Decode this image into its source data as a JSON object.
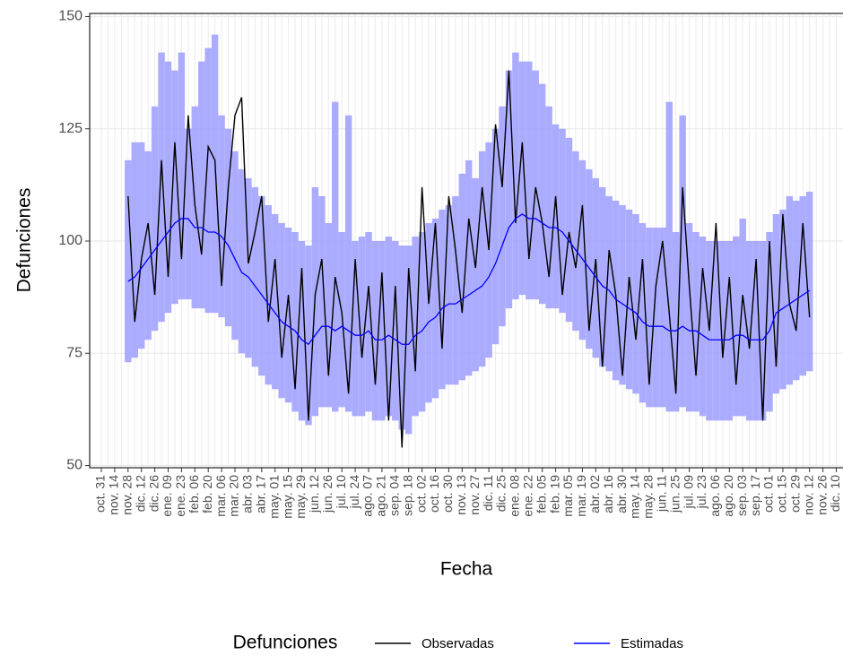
{
  "chart_data": {
    "type": "line",
    "x_label": "Fecha",
    "y_label": "Defunciones",
    "legend_title": "Defunciones",
    "categories": [
      "oct. 31",
      null,
      "nov. 14",
      null,
      "nov. 28",
      null,
      "dic. 12",
      null,
      "dic. 26",
      null,
      "ene. 09",
      null,
      "ene. 23",
      null,
      "feb. 06",
      null,
      "feb. 20",
      null,
      "mar. 06",
      null,
      "mar. 20",
      null,
      "abr. 03",
      null,
      "abr. 17",
      null,
      "may. 01",
      null,
      "may. 15",
      null,
      "may. 29",
      null,
      "jun. 12",
      null,
      "jun. 26",
      null,
      "jul. 10",
      null,
      "jul. 24",
      null,
      "ago. 07",
      null,
      "ago. 21",
      null,
      "sep. 04",
      null,
      "sep. 18",
      null,
      "oct. 02",
      null,
      "oct. 16",
      null,
      "oct. 30",
      null,
      "nov. 13",
      null,
      "nov. 27",
      null,
      "dic. 11",
      null,
      "dic. 25",
      null,
      "ene. 08",
      null,
      "ene. 22",
      null,
      "feb. 05",
      null,
      "feb. 19",
      null,
      "mar. 05",
      null,
      "mar. 19",
      null,
      "abr. 02",
      null,
      "abr. 16",
      null,
      "abr. 30",
      null,
      "may. 14",
      null,
      "may. 28",
      null,
      "jun. 11",
      null,
      "jun. 25",
      null,
      "jul. 09",
      null,
      "jul. 23",
      null,
      "ago. 06",
      null,
      "ago. 20",
      null,
      "sep. 03",
      null,
      "sep. 17",
      null,
      "oct. 01",
      null,
      "oct. 15",
      null,
      "oct. 29",
      null,
      "nov. 12",
      null,
      "nov. 26",
      null,
      "dic. 10"
    ],
    "series": [
      {
        "name": "Observadas",
        "color": "#000000",
        "values": [
          null,
          null,
          null,
          null,
          110,
          82,
          96,
          104,
          88,
          118,
          92,
          122,
          96,
          128,
          108,
          97,
          121,
          118,
          90,
          112,
          128,
          132,
          95,
          102,
          110,
          82,
          96,
          74,
          88,
          67,
          94,
          60,
          88,
          96,
          70,
          92,
          84,
          66,
          96,
          74,
          90,
          68,
          93,
          60,
          90,
          54,
          94,
          71,
          112,
          86,
          104,
          76,
          110,
          98,
          84,
          105,
          94,
          112,
          98,
          126,
          112,
          138,
          104,
          122,
          96,
          112,
          104,
          92,
          110,
          88,
          102,
          94,
          108,
          80,
          96,
          72,
          98,
          88,
          70,
          92,
          78,
          96,
          68,
          90,
          100,
          84,
          66,
          112,
          90,
          70,
          94,
          80,
          104,
          74,
          92,
          68,
          88,
          76,
          96,
          60,
          100,
          72,
          106,
          86,
          80,
          104,
          83,
          null,
          null,
          null,
          null
        ]
      },
      {
        "name": "Estimadas",
        "color": "#0000ff",
        "band_color": "#9e9eff",
        "values": [
          null,
          null,
          null,
          null,
          91,
          92,
          94,
          96,
          98,
          100,
          102,
          104,
          105,
          105,
          103,
          103,
          102,
          102,
          101,
          99,
          96,
          93,
          92,
          90,
          88,
          86,
          84,
          82,
          81,
          80,
          78,
          77,
          79,
          81,
          81,
          80,
          81,
          80,
          79,
          79,
          80,
          78,
          78,
          79,
          78,
          77,
          77,
          79,
          80,
          82,
          83,
          85,
          86,
          86,
          87,
          88,
          89,
          90,
          92,
          95,
          99,
          103,
          105,
          106,
          105,
          105,
          104,
          103,
          103,
          102,
          100,
          98,
          96,
          94,
          92,
          90,
          89,
          87,
          86,
          85,
          84,
          82,
          81,
          81,
          81,
          80,
          80,
          81,
          80,
          80,
          79,
          78,
          78,
          78,
          78,
          79,
          79,
          78,
          78,
          78,
          80,
          84,
          85,
          86,
          87,
          88,
          89,
          null,
          null,
          null,
          null
        ],
        "upper": [
          null,
          null,
          null,
          null,
          118,
          122,
          122,
          120,
          130,
          142,
          140,
          138,
          142,
          125,
          130,
          140,
          143,
          146,
          128,
          125,
          120,
          116,
          114,
          112,
          110,
          108,
          106,
          104,
          103,
          102,
          100,
          99,
          112,
          110,
          104,
          131,
          102,
          128,
          100,
          101,
          102,
          100,
          100,
          101,
          100,
          99,
          99,
          101,
          102,
          104,
          105,
          107,
          108,
          110,
          115,
          118,
          114,
          120,
          122,
          125,
          130,
          138,
          142,
          140,
          140,
          138,
          135,
          130,
          126,
          125,
          123,
          120,
          118,
          116,
          114,
          112,
          110,
          109,
          108,
          107,
          106,
          104,
          103,
          103,
          103,
          131,
          102,
          128,
          104,
          102,
          101,
          100,
          100,
          100,
          100,
          101,
          105,
          100,
          100,
          100,
          102,
          106,
          107,
          110,
          109,
          110,
          111,
          null,
          null,
          null,
          null
        ],
        "lower": [
          null,
          null,
          null,
          null,
          73,
          74,
          76,
          78,
          80,
          82,
          84,
          86,
          87,
          87,
          85,
          85,
          84,
          84,
          83,
          81,
          78,
          75,
          74,
          72,
          70,
          68,
          67,
          65,
          64,
          62,
          60,
          59,
          61,
          63,
          63,
          62,
          63,
          62,
          61,
          61,
          62,
          60,
          60,
          61,
          60,
          58,
          57,
          61,
          62,
          64,
          65,
          67,
          68,
          68,
          69,
          70,
          71,
          72,
          74,
          77,
          81,
          85,
          87,
          88,
          87,
          87,
          86,
          85,
          85,
          84,
          82,
          80,
          78,
          76,
          74,
          72,
          71,
          69,
          68,
          67,
          66,
          64,
          63,
          63,
          63,
          62,
          62,
          63,
          62,
          62,
          61,
          60,
          60,
          60,
          60,
          61,
          61,
          60,
          60,
          60,
          62,
          66,
          67,
          68,
          69,
          70,
          71,
          null,
          null,
          null,
          null
        ]
      }
    ],
    "ylim": [
      49.5,
      150.7
    ],
    "yticks": [
      50,
      75,
      100,
      125,
      150
    ],
    "grid": true
  }
}
